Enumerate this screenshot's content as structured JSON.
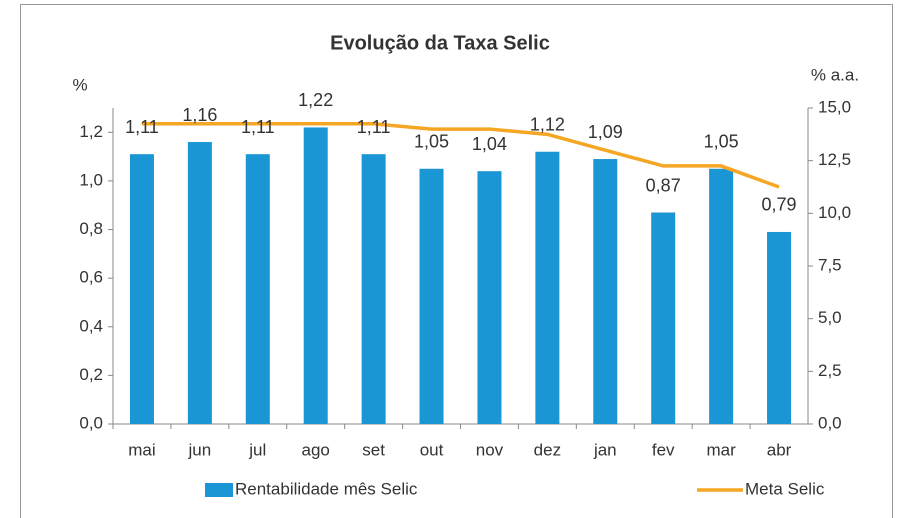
{
  "chart_data": {
    "type": "bar",
    "title": "Evolução da Taxa Selic",
    "y_label": "%",
    "y2_label": "% a.a.",
    "categories": [
      "mai",
      "jun",
      "jul",
      "ago",
      "set",
      "out",
      "nov",
      "dez",
      "jan",
      "fev",
      "mar",
      "abr"
    ],
    "series": [
      {
        "name": "Rentabilidade mês Selic",
        "type": "bar",
        "color": "#1a96d4",
        "values": [
          1.11,
          1.16,
          1.11,
          1.22,
          1.11,
          1.05,
          1.04,
          1.12,
          1.09,
          0.87,
          1.05,
          0.79
        ],
        "value_labels": [
          "1,11",
          "1,16",
          "1,11",
          "1,22",
          "1,11",
          "1,05",
          "1,04",
          "1,12",
          "1,09",
          "0,87",
          "1,05",
          "0,79"
        ]
      },
      {
        "name": "Meta Selic",
        "type": "line",
        "axis": "y2",
        "color": "#f5a623",
        "values": [
          14.25,
          14.25,
          14.25,
          14.25,
          14.25,
          14.0,
          14.0,
          13.75,
          13.0,
          12.25,
          12.25,
          11.25
        ]
      }
    ],
    "ylim": [
      0,
      1.3
    ],
    "yticks": [
      {
        "value": 0,
        "label": "0,0"
      },
      {
        "value": 0.2,
        "label": "0,2"
      },
      {
        "value": 0.4,
        "label": "0,4"
      },
      {
        "value": 0.6,
        "label": "0,6"
      },
      {
        "value": 0.8,
        "label": "0,8"
      },
      {
        "value": 1.0,
        "label": "1,0"
      },
      {
        "value": 1.2,
        "label": "1,2"
      }
    ],
    "y2lim": [
      0,
      15
    ],
    "y2ticks": [
      {
        "value": 0,
        "label": "0,0"
      },
      {
        "value": 2.5,
        "label": "2,5"
      },
      {
        "value": 5,
        "label": "5,0"
      },
      {
        "value": 7.5,
        "label": "7,5"
      },
      {
        "value": 10,
        "label": "10,0"
      },
      {
        "value": 12.5,
        "label": "12,5"
      },
      {
        "value": 15,
        "label": "15,0"
      }
    ],
    "grid": false,
    "legend": "bottom"
  }
}
